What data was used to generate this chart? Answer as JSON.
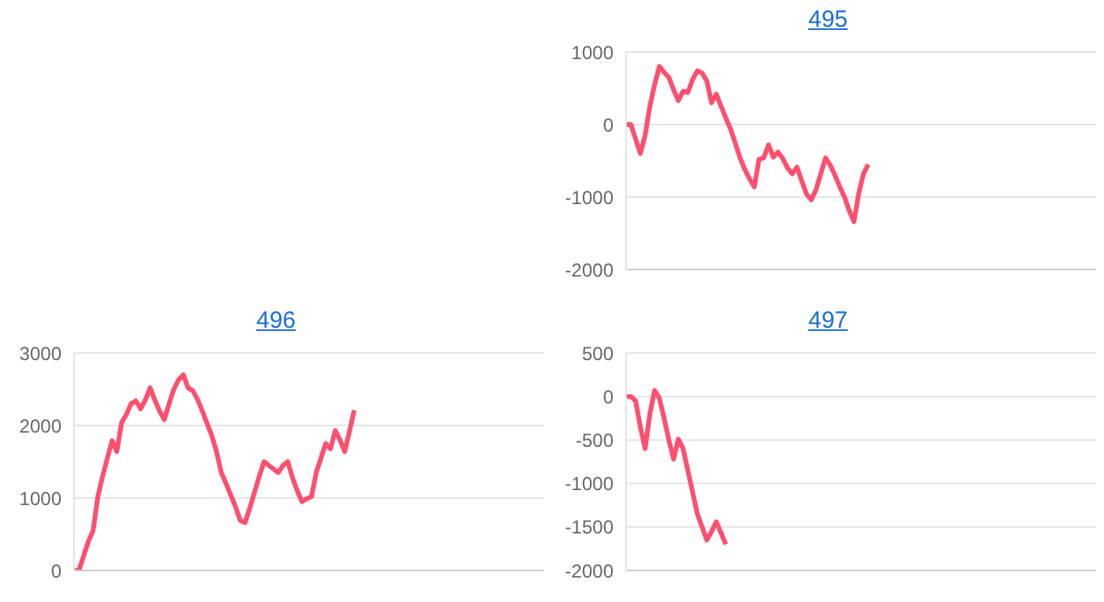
{
  "chart_data": [
    {
      "type": "line",
      "title": "495",
      "categories": [
        null,
        null,
        null,
        null,
        null,
        null,
        null,
        null,
        null,
        null,
        null,
        null,
        null,
        null,
        null,
        null,
        null,
        null,
        null,
        null,
        null,
        null,
        null,
        null,
        null,
        null,
        null,
        null,
        null,
        null,
        null,
        null,
        null,
        null,
        null,
        null,
        null,
        null,
        null,
        null,
        null,
        null,
        null,
        null,
        null,
        null,
        null,
        null,
        null,
        null,
        null,
        null,
        null,
        null,
        null,
        null,
        null,
        null,
        null,
        null,
        null,
        null,
        null,
        null,
        null,
        null,
        null,
        null,
        null,
        null,
        null,
        null,
        null,
        null,
        null,
        null,
        null,
        null,
        null,
        null,
        null,
        null,
        null,
        null,
        null,
        null,
        null,
        null,
        null,
        null,
        null,
        null,
        null,
        null,
        null,
        null,
        null,
        null,
        null,
        null
      ],
      "series": [
        {
          "color": "#ff4f6e",
          "values": [
            0,
            0,
            -200,
            -400,
            -150,
            250,
            550,
            800,
            720,
            650,
            480,
            330,
            460,
            440,
            620,
            740,
            710,
            600,
            300,
            420,
            250,
            90,
            -60,
            -260,
            -460,
            -620,
            -750,
            -860,
            -480,
            -460,
            -280,
            -450,
            -380,
            -470,
            -600,
            -680,
            -590,
            -780,
            -960,
            -1040,
            -900,
            -680,
            -460,
            -560,
            -700,
            -860,
            -1000,
            -1190,
            -1340,
            -950,
            -680,
            -550,
            null,
            null,
            null,
            null,
            null,
            null,
            null,
            null,
            null,
            null,
            null,
            null,
            null,
            null,
            null,
            null,
            null,
            null,
            null,
            null,
            null,
            null,
            null,
            null,
            null,
            null,
            null,
            null,
            null,
            null,
            null,
            null,
            null,
            null,
            null,
            null,
            null,
            null,
            null,
            null,
            null,
            null,
            null,
            null,
            null,
            null,
            null,
            null
          ]
        }
      ],
      "ylim": [
        -2000,
        1000
      ],
      "yticks": [
        -2000,
        -1000,
        0,
        1000
      ],
      "grid": "y",
      "tick_labels": "y"
    },
    {
      "type": "line",
      "title": "496",
      "categories": [
        null,
        null,
        null,
        null,
        null,
        null,
        null,
        null,
        null,
        null,
        null,
        null,
        null,
        null,
        null,
        null,
        null,
        null,
        null,
        null,
        null,
        null,
        null,
        null,
        null,
        null,
        null,
        null,
        null,
        null,
        null,
        null,
        null,
        null,
        null,
        null,
        null,
        null,
        null,
        null,
        null,
        null,
        null,
        null,
        null,
        null,
        null,
        null,
        null,
        null,
        null,
        null,
        null,
        null,
        null,
        null,
        null,
        null,
        null,
        null,
        null,
        null,
        null,
        null,
        null,
        null,
        null,
        null,
        null,
        null,
        null,
        null,
        null,
        null,
        null,
        null,
        null,
        null,
        null,
        null,
        null,
        null,
        null,
        null,
        null,
        null,
        null,
        null,
        null,
        null,
        null,
        null,
        null,
        null,
        null,
        null,
        null,
        null,
        null,
        null
      ],
      "series": [
        {
          "color": "#ff4f6e",
          "values": [
            0,
            0,
            200,
            400,
            550,
            1020,
            1300,
            1550,
            1790,
            1640,
            2040,
            2150,
            2300,
            2340,
            2230,
            2350,
            2520,
            2350,
            2200,
            2080,
            2300,
            2500,
            2630,
            2700,
            2520,
            2480,
            2360,
            2200,
            2030,
            1860,
            1640,
            1350,
            1200,
            1040,
            880,
            690,
            660,
            860,
            1080,
            1300,
            1500,
            1450,
            1400,
            1350,
            1450,
            1500,
            1280,
            1100,
            950,
            990,
            1020,
            1350,
            1550,
            1750,
            1680,
            1930,
            1800,
            1640,
            1920,
            2210,
            null,
            null,
            null,
            null,
            null,
            null,
            null,
            null,
            null,
            null,
            null,
            null,
            null,
            null,
            null,
            null,
            null,
            null,
            null,
            null,
            null,
            null,
            null,
            null,
            null,
            null,
            null,
            null,
            null,
            null,
            null,
            null,
            null,
            null,
            null,
            null,
            null,
            null,
            null,
            null
          ]
        }
      ],
      "ylim": [
        0,
        3000
      ],
      "yticks": [
        0,
        1000,
        2000,
        3000
      ],
      "grid": "y",
      "tick_labels": "y"
    },
    {
      "type": "line",
      "title": "497",
      "categories": [
        null,
        null,
        null,
        null,
        null,
        null,
        null,
        null,
        null,
        null,
        null,
        null,
        null,
        null,
        null,
        null,
        null,
        null,
        null,
        null,
        null,
        null,
        null,
        null,
        null,
        null,
        null,
        null,
        null,
        null,
        null,
        null,
        null,
        null,
        null,
        null,
        null,
        null,
        null,
        null,
        null,
        null,
        null,
        null,
        null,
        null,
        null,
        null,
        null,
        null,
        null,
        null,
        null,
        null,
        null,
        null,
        null,
        null,
        null,
        null,
        null,
        null,
        null,
        null,
        null,
        null,
        null,
        null,
        null,
        null,
        null,
        null,
        null,
        null,
        null,
        null,
        null,
        null,
        null,
        null,
        null,
        null,
        null,
        null,
        null,
        null,
        null,
        null,
        null,
        null,
        null,
        null,
        null,
        null,
        null,
        null,
        null,
        null,
        null,
        null
      ],
      "series": [
        {
          "color": "#ff4f6e",
          "values": [
            0,
            0,
            -50,
            -350,
            -600,
            -200,
            70,
            -20,
            -250,
            -500,
            -720,
            -490,
            -600,
            -850,
            -1100,
            -1350,
            -1500,
            -1650,
            -1550,
            -1440,
            -1570,
            -1700,
            null,
            null,
            null,
            null,
            null,
            null,
            null,
            null,
            null,
            null,
            null,
            null,
            null,
            null,
            null,
            null,
            null,
            null,
            null,
            null,
            null,
            null,
            null,
            null,
            null,
            null,
            null,
            null,
            null,
            null,
            null,
            null,
            null,
            null,
            null,
            null,
            null,
            null,
            null,
            null,
            null,
            null,
            null,
            null,
            null,
            null,
            null,
            null,
            null,
            null,
            null,
            null,
            null,
            null,
            null,
            null,
            null,
            null,
            null,
            null,
            null,
            null,
            null,
            null,
            null,
            null,
            null,
            null,
            null,
            null,
            null,
            null,
            null,
            null,
            null,
            null,
            null,
            null
          ]
        }
      ],
      "ylim": [
        -2000,
        500
      ],
      "yticks": [
        -2000,
        -1500,
        -1000,
        -500,
        0,
        500
      ],
      "grid": "y",
      "tick_labels": "y"
    }
  ]
}
